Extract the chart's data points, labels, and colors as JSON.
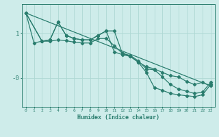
{
  "xlabel": "Humidex (Indice chaleur)",
  "bg_color": "#ceecea",
  "grid_color": "#aed8d4",
  "line_color": "#2a7d6e",
  "xlim": [
    -0.5,
    23.5
  ],
  "ylim": [
    -0.65,
    1.65
  ],
  "yticks": [
    1.0,
    0.0
  ],
  "ytick_labels": [
    "1",
    "-0"
  ],
  "xticks": [
    0,
    1,
    2,
    3,
    4,
    5,
    6,
    7,
    8,
    9,
    10,
    11,
    12,
    13,
    14,
    15,
    16,
    17,
    18,
    19,
    20,
    21,
    22,
    23
  ],
  "line1_x": [
    0,
    1,
    2,
    3,
    4,
    5,
    6,
    7,
    8,
    9,
    10,
    11,
    12,
    13,
    14,
    15,
    16,
    17,
    18,
    19,
    20,
    21,
    22,
    23
  ],
  "line1_y": [
    1.45,
    0.78,
    0.82,
    0.82,
    0.85,
    0.83,
    0.8,
    0.78,
    0.78,
    0.88,
    0.88,
    0.72,
    0.55,
    0.48,
    0.35,
    0.25,
    0.2,
    0.12,
    0.05,
    0.02,
    -0.08,
    -0.15,
    -0.1,
    -0.18
  ],
  "line2_x": [
    0,
    2,
    3,
    4,
    5,
    6,
    7,
    8,
    9,
    10,
    11,
    12,
    13,
    14,
    15,
    16,
    17,
    18,
    19,
    20,
    21,
    22,
    23
  ],
  "line2_y": [
    1.45,
    0.82,
    0.85,
    1.25,
    0.95,
    0.88,
    0.85,
    0.85,
    0.95,
    1.05,
    1.05,
    0.55,
    0.5,
    0.38,
    0.2,
    0.18,
    0.02,
    -0.15,
    -0.25,
    -0.3,
    -0.35,
    -0.32,
    -0.1
  ],
  "line3_x": [
    0,
    2,
    3,
    4,
    5,
    6,
    7,
    8,
    9,
    10,
    11,
    12,
    13,
    14,
    15,
    16,
    17,
    18,
    19,
    20,
    21,
    22,
    23
  ],
  "line3_y": [
    1.45,
    0.82,
    0.85,
    1.25,
    0.95,
    0.88,
    0.85,
    0.85,
    0.95,
    1.05,
    0.58,
    0.52,
    0.48,
    0.35,
    0.12,
    -0.22,
    -0.28,
    -0.35,
    -0.38,
    -0.4,
    -0.42,
    -0.38,
    -0.15
  ],
  "line4_x": [
    0,
    23
  ],
  "line4_y": [
    1.45,
    -0.18
  ]
}
